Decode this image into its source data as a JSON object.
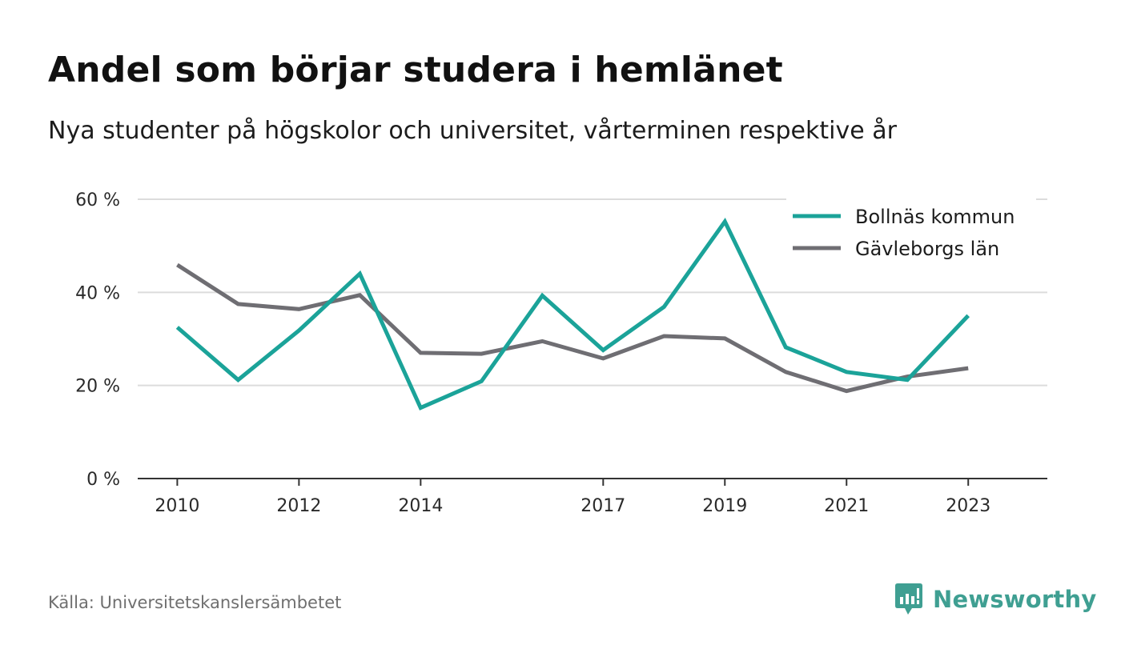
{
  "header": {
    "title": "Andel som börjar studera i hemlänet",
    "subtitle": "Nya studenter på högskolor och universitet, vårterminen respektive år"
  },
  "footer": {
    "source": "Källa: Universitetskanslersämbetet",
    "brand": "Newsworthy",
    "brand_icon": "newsworthy-logo-icon"
  },
  "colors": {
    "bollnas": "#1ba399",
    "gavleborg": "#6f6e73",
    "grid": "#dcdcdc",
    "axis": "#333333",
    "brand": "#3f9f92"
  },
  "chart_data": {
    "type": "line",
    "title": "Andel som börjar studera i hemlänet",
    "subtitle": "Nya studenter på högskolor och universitet, vårterminen respektive år",
    "x": [
      2010,
      2011,
      2012,
      2013,
      2014,
      2015,
      2016,
      2017,
      2018,
      2019,
      2020,
      2021,
      2022,
      2023
    ],
    "x_ticks": [
      2010,
      2012,
      2014,
      2017,
      2019,
      2021,
      2023
    ],
    "y_ticks": [
      0,
      20,
      40,
      60
    ],
    "y_tick_labels": [
      "0 %",
      "20 %",
      "40 %",
      "60 %"
    ],
    "ylim": [
      0,
      60
    ],
    "xlim": [
      2009.35,
      2024.3
    ],
    "grid": true,
    "legend_position": "top-right",
    "series": [
      {
        "name": "Bollnäs kommun",
        "color_key": "bollnas",
        "values": [
          32.5,
          21.2,
          31.8,
          44.0,
          15.2,
          20.9,
          39.3,
          27.6,
          36.9,
          55.2,
          28.2,
          22.9,
          21.2,
          35.0
        ]
      },
      {
        "name": "Gävleborgs län",
        "color_key": "gavleborg",
        "values": [
          45.9,
          37.5,
          36.4,
          39.4,
          27.0,
          26.8,
          29.5,
          25.8,
          30.6,
          30.1,
          22.9,
          18.8,
          21.9,
          23.7
        ]
      }
    ]
  }
}
